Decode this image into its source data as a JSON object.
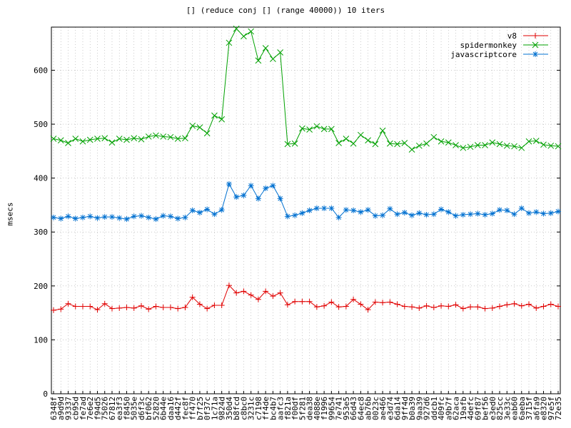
{
  "chart_data": {
    "type": "line",
    "title": "[] (reduce conj [] (range 40000)) 10 iters",
    "xlabel": "",
    "ylabel": "msecs",
    "ylim": [
      0,
      680
    ],
    "yticks": [
      0,
      100,
      200,
      300,
      400,
      500,
      600
    ],
    "grid": true,
    "legend_position": "top-right",
    "categories": [
      "6348f",
      "a9d9d",
      "93337",
      "cb95d",
      "fe7ad",
      "7e6e2",
      "f94d5",
      "75026",
      "67812",
      "ea3f3",
      "f8450",
      "5035e",
      "d6f3c",
      "bf062",
      "52820",
      "6b44e",
      "daa16",
      "d442f",
      "fec8f",
      "ff470",
      "b7f25",
      "0f37c",
      "1c71a",
      "9824d",
      "350d4",
      "b8fcd",
      "c8bc0",
      "3231c",
      "c7198",
      "ff4de",
      "bc4b7",
      "aafc3",
      "f821a",
      "f00df",
      "5f281",
      "dea38",
      "4088e",
      "f1996",
      "99654",
      "7e741",
      "953e5",
      "66d43",
      "64ec8",
      "ab76b",
      "0023c",
      "ae466",
      "e3d74",
      "6da14",
      "9ff4d",
      "b0a39",
      "9aa39",
      "927d6",
      "ddcb1",
      "409fc",
      "a9b7f",
      "62aca",
      "19afb",
      "4defc",
      "69f87",
      "bef56",
      "e3ed0",
      "825cc",
      "3e33c",
      "eab60",
      "6aeba",
      "3715f",
      "a6fa9",
      "e8320",
      "97e5f",
      "72e35"
    ],
    "series": [
      {
        "name": "v8",
        "color": "#e00000",
        "marker": "plus",
        "values": [
          155,
          157,
          167,
          162,
          162,
          162,
          156,
          167,
          158,
          159,
          160,
          159,
          163,
          157,
          162,
          160,
          160,
          158,
          160,
          179,
          166,
          158,
          164,
          164,
          201,
          187,
          190,
          183,
          175,
          190,
          181,
          187,
          165,
          171,
          171,
          171,
          161,
          163,
          170,
          161,
          162,
          175,
          166,
          156,
          170,
          169,
          170,
          166,
          162,
          161,
          159,
          163,
          160,
          163,
          162,
          165,
          158,
          161,
          161,
          158,
          159,
          162,
          165,
          167,
          163,
          166,
          159,
          162,
          166,
          162
        ]
      },
      {
        "name": "spidermonkey",
        "color": "#00a000",
        "marker": "x",
        "values": [
          473,
          470,
          465,
          473,
          468,
          471,
          473,
          474,
          466,
          473,
          471,
          474,
          472,
          477,
          479,
          477,
          476,
          473,
          474,
          497,
          494,
          483,
          516,
          509,
          651,
          677,
          663,
          672,
          618,
          641,
          621,
          633,
          463,
          464,
          492,
          490,
          496,
          491,
          491,
          465,
          473,
          464,
          480,
          470,
          463,
          488,
          464,
          463,
          465,
          453,
          460,
          464,
          476,
          468,
          466,
          461,
          456,
          458,
          461,
          461,
          466,
          463,
          460,
          459,
          456,
          468,
          469,
          462,
          460,
          459
        ]
      },
      {
        "name": "javascriptcore",
        "color": "#0070d0",
        "marker": "star",
        "values": [
          327,
          325,
          329,
          325,
          327,
          329,
          326,
          328,
          328,
          326,
          324,
          329,
          330,
          327,
          324,
          330,
          329,
          325,
          327,
          340,
          336,
          342,
          333,
          341,
          389,
          365,
          368,
          386,
          362,
          381,
          386,
          362,
          329,
          331,
          335,
          340,
          344,
          344,
          344,
          327,
          341,
          340,
          337,
          341,
          330,
          331,
          343,
          333,
          336,
          331,
          335,
          332,
          333,
          342,
          337,
          330,
          332,
          333,
          334,
          332,
          334,
          341,
          340,
          333,
          344,
          335,
          337,
          334,
          335,
          338
        ]
      }
    ]
  }
}
